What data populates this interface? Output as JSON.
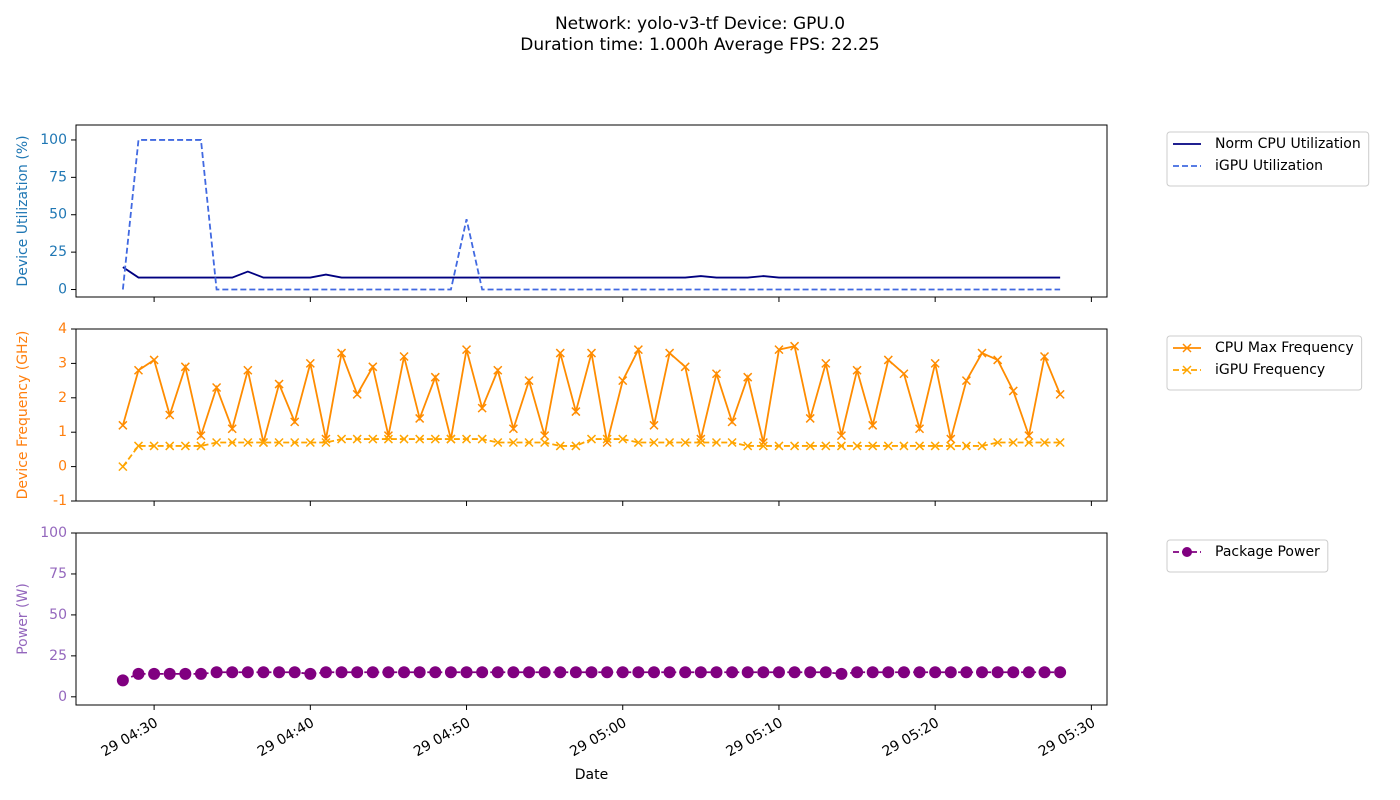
{
  "title": "Network: yolo-v3-tf Device: GPU.0",
  "subtitle": "Duration time: 1.000h Average FPS: 22.25",
  "chart_data": [
    {
      "type": "line",
      "ylabel": "Device Utilization (%)",
      "label_color": "#1f77b4",
      "x": [
        "29 04:28",
        "29 04:29",
        "29 04:30",
        "29 04:31",
        "29 04:32",
        "29 04:33",
        "29 04:34",
        "29 04:35",
        "29 04:36",
        "29 04:37",
        "29 04:38",
        "29 04:39",
        "29 04:40",
        "29 04:41",
        "29 04:42",
        "29 04:43",
        "29 04:44",
        "29 04:45",
        "29 04:46",
        "29 04:47",
        "29 04:48",
        "29 04:49",
        "29 04:50",
        "29 04:51",
        "29 04:52",
        "29 04:53",
        "29 04:54",
        "29 04:55",
        "29 04:56",
        "29 04:57",
        "29 04:58",
        "29 04:59",
        "29 05:00",
        "29 05:01",
        "29 05:02",
        "29 05:03",
        "29 05:04",
        "29 05:05",
        "29 05:06",
        "29 05:07",
        "29 05:08",
        "29 05:09",
        "29 05:10",
        "29 05:11",
        "29 05:12",
        "29 05:13",
        "29 05:14",
        "29 05:15",
        "29 05:16",
        "29 05:17",
        "29 05:18",
        "29 05:19",
        "29 05:20",
        "29 05:21",
        "29 05:22",
        "29 05:23",
        "29 05:24",
        "29 05:25",
        "29 05:26",
        "29 05:27",
        "29 05:28"
      ],
      "xlim": [
        "29 04:25",
        "29 05:31"
      ],
      "xticks": [
        "29 04:30",
        "29 04:40",
        "29 04:50",
        "29 05:00",
        "29 05:10",
        "29 05:20",
        "29 05:30"
      ],
      "ylim": [
        -5,
        110
      ],
      "yticks": [
        0,
        25,
        50,
        75,
        100
      ],
      "series": [
        {
          "name": "Norm CPU Utilization",
          "color": "#000080",
          "linestyle": "solid",
          "values": [
            15,
            8,
            8,
            8,
            8,
            8,
            8,
            8,
            12,
            8,
            8,
            8,
            8,
            10,
            8,
            8,
            8,
            8,
            8,
            8,
            8,
            8,
            8,
            8,
            8,
            8,
            8,
            8,
            8,
            8,
            8,
            8,
            8,
            8,
            8,
            8,
            8,
            9,
            8,
            8,
            8,
            9,
            8,
            8,
            8,
            8,
            8,
            8,
            8,
            8,
            8,
            8,
            8,
            8,
            8,
            8,
            8,
            8,
            8,
            8,
            8
          ]
        },
        {
          "name": "iGPU Utilization",
          "color": "#4169e1",
          "linestyle": "dashed",
          "values": [
            0,
            100,
            100,
            100,
            100,
            100,
            0,
            0,
            0,
            0,
            0,
            0,
            0,
            0,
            0,
            0,
            0,
            0,
            0,
            0,
            0,
            0,
            47,
            0,
            0,
            0,
            0,
            0,
            0,
            0,
            0,
            0,
            0,
            0,
            0,
            0,
            0,
            0,
            0,
            0,
            0,
            0,
            0,
            0,
            0,
            0,
            0,
            0,
            0,
            0,
            0,
            0,
            0,
            0,
            0,
            0,
            0,
            0,
            0,
            0,
            0
          ]
        }
      ]
    },
    {
      "type": "line",
      "ylabel": "Device Frequency (GHz)",
      "label_color": "#ff7f0e",
      "x": [
        "29 04:28",
        "29 04:29",
        "29 04:30",
        "29 04:31",
        "29 04:32",
        "29 04:33",
        "29 04:34",
        "29 04:35",
        "29 04:36",
        "29 04:37",
        "29 04:38",
        "29 04:39",
        "29 04:40",
        "29 04:41",
        "29 04:42",
        "29 04:43",
        "29 04:44",
        "29 04:45",
        "29 04:46",
        "29 04:47",
        "29 04:48",
        "29 04:49",
        "29 04:50",
        "29 04:51",
        "29 04:52",
        "29 04:53",
        "29 04:54",
        "29 04:55",
        "29 04:56",
        "29 04:57",
        "29 04:58",
        "29 04:59",
        "29 05:00",
        "29 05:01",
        "29 05:02",
        "29 05:03",
        "29 05:04",
        "29 05:05",
        "29 05:06",
        "29 05:07",
        "29 05:08",
        "29 05:09",
        "29 05:10",
        "29 05:11",
        "29 05:12",
        "29 05:13",
        "29 05:14",
        "29 05:15",
        "29 05:16",
        "29 05:17",
        "29 05:18",
        "29 05:19",
        "29 05:20",
        "29 05:21",
        "29 05:22",
        "29 05:23",
        "29 05:24",
        "29 05:25",
        "29 05:26",
        "29 05:27",
        "29 05:28"
      ],
      "xlim": [
        "29 04:25",
        "29 05:31"
      ],
      "xticks": [
        "29 04:30",
        "29 04:40",
        "29 04:50",
        "29 05:00",
        "29 05:10",
        "29 05:20",
        "29 05:30"
      ],
      "ylim": [
        -1,
        4
      ],
      "yticks": [
        -1,
        0,
        1,
        2,
        3,
        4
      ],
      "series": [
        {
          "name": "CPU Max Frequency",
          "color": "#ff8c00",
          "linestyle": "solid",
          "marker": "x",
          "values": [
            1.2,
            2.8,
            3.1,
            1.5,
            2.9,
            0.9,
            2.3,
            1.1,
            2.8,
            0.7,
            2.4,
            1.3,
            3.0,
            0.8,
            3.3,
            2.1,
            2.9,
            0.9,
            3.2,
            1.4,
            2.6,
            0.8,
            3.4,
            1.7,
            2.8,
            1.1,
            2.5,
            0.9,
            3.3,
            1.6,
            3.3,
            0.7,
            2.5,
            3.4,
            1.2,
            3.3,
            2.9,
            0.8,
            2.7,
            1.3,
            2.6,
            0.7,
            3.4,
            3.5,
            1.4,
            3.0,
            0.9,
            2.8,
            1.2,
            3.1,
            2.7,
            1.1,
            3.0,
            0.8,
            2.5,
            3.3,
            3.1,
            2.2,
            0.9,
            3.2,
            2.1
          ]
        },
        {
          "name": "iGPU Frequency",
          "color": "#ffa500",
          "linestyle": "dashed",
          "marker": "x",
          "values": [
            0,
            0.6,
            0.6,
            0.6,
            0.6,
            0.6,
            0.7,
            0.7,
            0.7,
            0.7,
            0.7,
            0.7,
            0.7,
            0.7,
            0.8,
            0.8,
            0.8,
            0.8,
            0.8,
            0.8,
            0.8,
            0.8,
            0.8,
            0.8,
            0.7,
            0.7,
            0.7,
            0.7,
            0.6,
            0.6,
            0.8,
            0.8,
            0.8,
            0.7,
            0.7,
            0.7,
            0.7,
            0.7,
            0.7,
            0.7,
            0.6,
            0.6,
            0.6,
            0.6,
            0.6,
            0.6,
            0.6,
            0.6,
            0.6,
            0.6,
            0.6,
            0.6,
            0.6,
            0.6,
            0.6,
            0.6,
            0.7,
            0.7,
            0.7,
            0.7,
            0.7
          ]
        }
      ]
    },
    {
      "type": "line",
      "ylabel": "Power (W)",
      "xlabel": "Date",
      "label_color": "#9467bd",
      "x": [
        "29 04:28",
        "29 04:29",
        "29 04:30",
        "29 04:31",
        "29 04:32",
        "29 04:33",
        "29 04:34",
        "29 04:35",
        "29 04:36",
        "29 04:37",
        "29 04:38",
        "29 04:39",
        "29 04:40",
        "29 04:41",
        "29 04:42",
        "29 04:43",
        "29 04:44",
        "29 04:45",
        "29 04:46",
        "29 04:47",
        "29 04:48",
        "29 04:49",
        "29 04:50",
        "29 04:51",
        "29 04:52",
        "29 04:53",
        "29 04:54",
        "29 04:55",
        "29 04:56",
        "29 04:57",
        "29 04:58",
        "29 04:59",
        "29 05:00",
        "29 05:01",
        "29 05:02",
        "29 05:03",
        "29 05:04",
        "29 05:05",
        "29 05:06",
        "29 05:07",
        "29 05:08",
        "29 05:09",
        "29 05:10",
        "29 05:11",
        "29 05:12",
        "29 05:13",
        "29 05:14",
        "29 05:15",
        "29 05:16",
        "29 05:17",
        "29 05:18",
        "29 05:19",
        "29 05:20",
        "29 05:21",
        "29 05:22",
        "29 05:23",
        "29 05:24",
        "29 05:25",
        "29 05:26",
        "29 05:27",
        "29 05:28"
      ],
      "xlim": [
        "29 04:25",
        "29 05:31"
      ],
      "xticks": [
        "29 04:30",
        "29 04:40",
        "29 04:50",
        "29 05:00",
        "29 05:10",
        "29 05:20",
        "29 05:30"
      ],
      "ylim": [
        -5,
        100
      ],
      "yticks": [
        0,
        25,
        50,
        75,
        100
      ],
      "series": [
        {
          "name": "Package Power",
          "color": "#800080",
          "linestyle": "dashed",
          "marker": "o",
          "values": [
            10,
            14,
            14,
            14,
            14,
            14,
            15,
            15,
            15,
            15,
            15,
            15,
            14,
            15,
            15,
            15,
            15,
            15,
            15,
            15,
            15,
            15,
            15,
            15,
            15,
            15,
            15,
            15,
            15,
            15,
            15,
            15,
            15,
            15,
            15,
            15,
            15,
            15,
            15,
            15,
            15,
            15,
            15,
            15,
            15,
            15,
            14,
            15,
            15,
            15,
            15,
            15,
            15,
            15,
            15,
            15,
            15,
            15,
            15,
            15,
            15
          ]
        }
      ]
    }
  ]
}
